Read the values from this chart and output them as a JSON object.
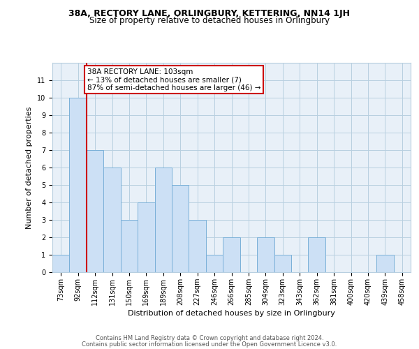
{
  "title": "38A, RECTORY LANE, ORLINGBURY, KETTERING, NN14 1JH",
  "subtitle": "Size of property relative to detached houses in Orlingbury",
  "xlabel": "Distribution of detached houses by size in Orlingbury",
  "ylabel": "Number of detached properties",
  "footer_line1": "Contains HM Land Registry data © Crown copyright and database right 2024.",
  "footer_line2": "Contains public sector information licensed under the Open Government Licence v3.0.",
  "bin_labels": [
    "73sqm",
    "92sqm",
    "112sqm",
    "131sqm",
    "150sqm",
    "169sqm",
    "189sqm",
    "208sqm",
    "227sqm",
    "246sqm",
    "266sqm",
    "285sqm",
    "304sqm",
    "323sqm",
    "343sqm",
    "362sqm",
    "381sqm",
    "400sqm",
    "420sqm",
    "439sqm",
    "458sqm"
  ],
  "bar_values": [
    1,
    10,
    7,
    6,
    3,
    4,
    6,
    5,
    3,
    1,
    2,
    0,
    2,
    1,
    0,
    2,
    0,
    0,
    0,
    1,
    0
  ],
  "bar_color": "#cce0f5",
  "bar_edge_color": "#7ab0d8",
  "property_line_color": "#cc0000",
  "annotation_text": "38A RECTORY LANE: 103sqm\n← 13% of detached houses are smaller (7)\n87% of semi-detached houses are larger (46) →",
  "annotation_box_color": "#cc0000",
  "ylim": [
    0,
    12
  ],
  "yticks": [
    0,
    1,
    2,
    3,
    4,
    5,
    6,
    7,
    8,
    9,
    10,
    11
  ],
  "grid_color": "#b8cfe0",
  "bg_color": "#e8f0f8",
  "title_fontsize": 9,
  "subtitle_fontsize": 8.5,
  "xlabel_fontsize": 8,
  "ylabel_fontsize": 8,
  "tick_fontsize": 7,
  "footer_fontsize": 6,
  "annotation_fontsize": 7.5
}
